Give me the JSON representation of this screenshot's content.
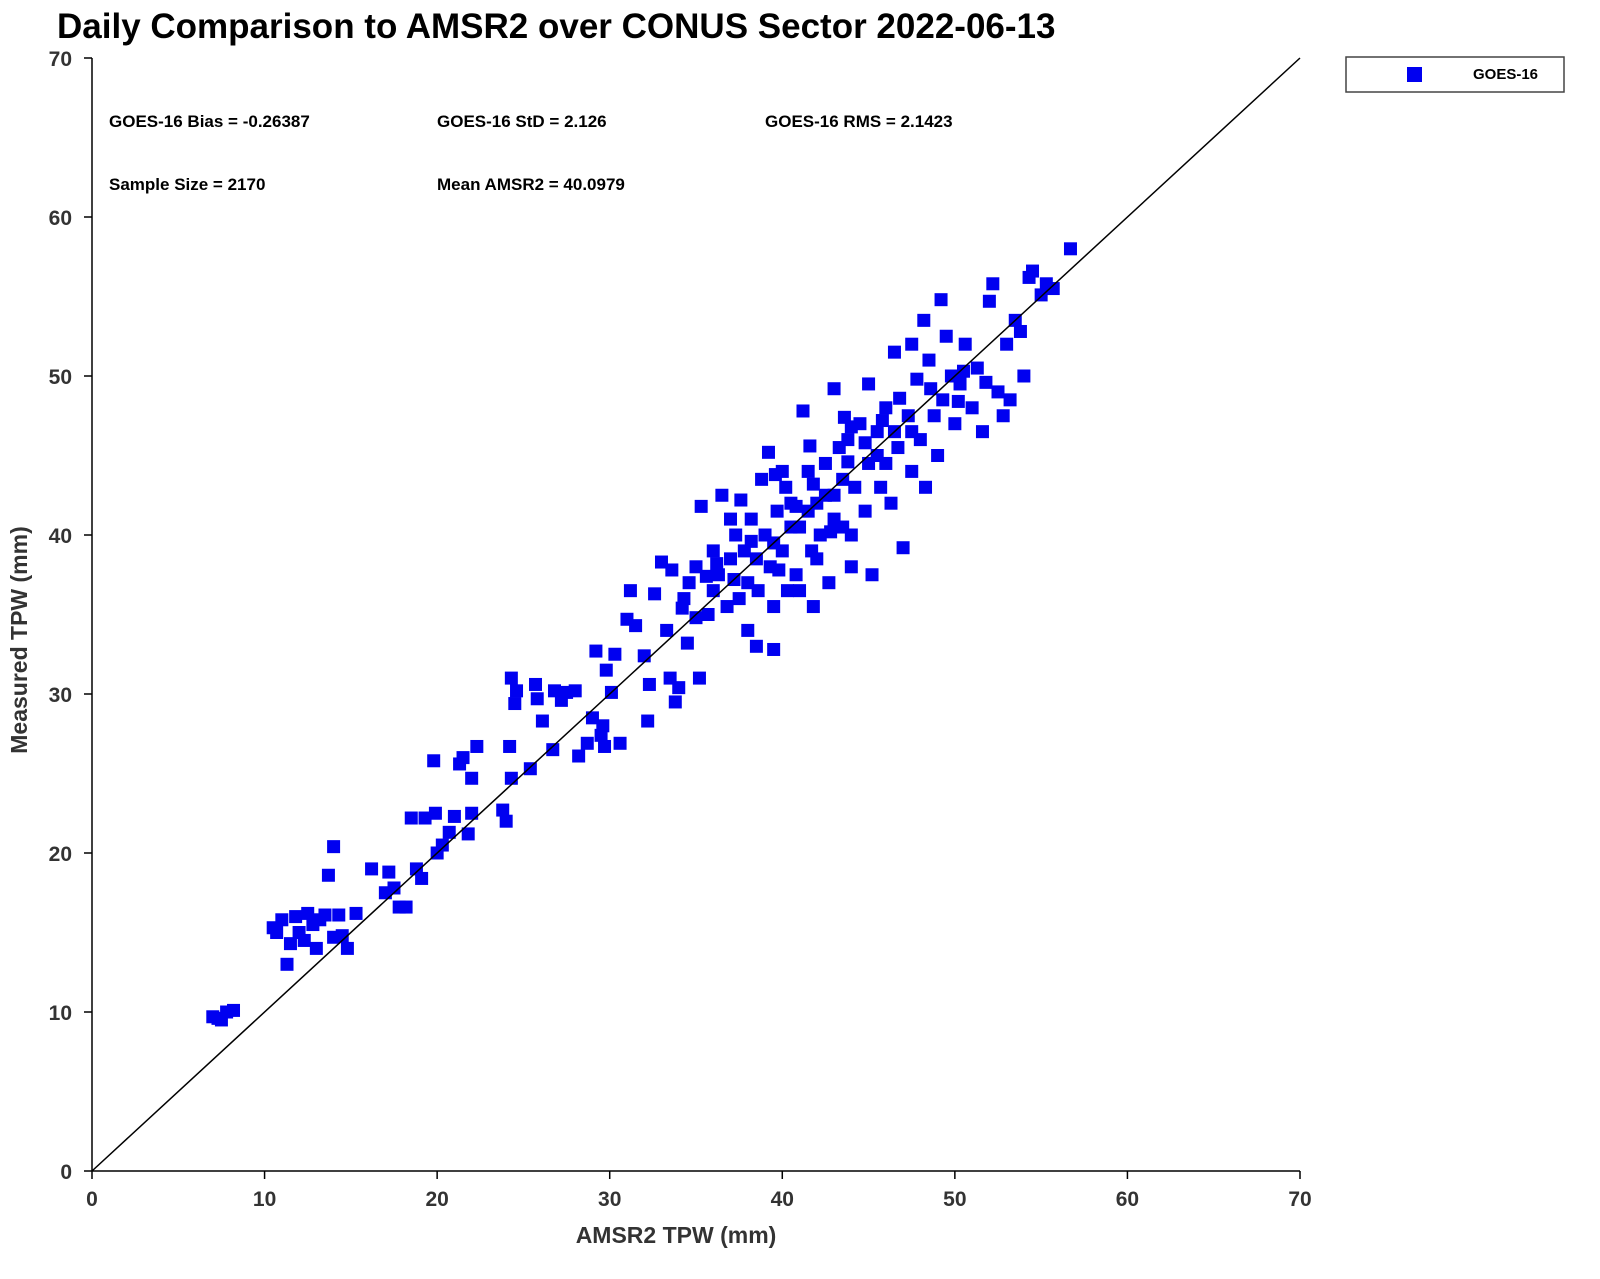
{
  "chart_data": {
    "type": "scatter",
    "title": "Daily Comparison to AMSR2 over CONUS Sector 2022-06-13",
    "xlabel": "AMSR2 TPW (mm)",
    "ylabel": "Measured TPW (mm)",
    "xlim": [
      0,
      70
    ],
    "ylim": [
      0,
      70
    ],
    "xticks": [
      0,
      10,
      20,
      30,
      40,
      50,
      60,
      70
    ],
    "yticks": [
      0,
      10,
      20,
      30,
      40,
      50,
      60,
      70
    ],
    "grid": false,
    "legend": {
      "placement": "top-right outside",
      "entries": [
        "GOES-16"
      ]
    },
    "reference_line": {
      "label": "1:1",
      "from": [
        0,
        0
      ],
      "to": [
        70,
        70
      ]
    },
    "annotations": {
      "bias": "GOES-16 Bias = -0.26387",
      "std": "GOES-16 StD = 2.126",
      "rms": "GOES-16 RMS = 2.1423",
      "sample_size": "Sample Size = 2170",
      "mean": "Mean AMSR2 = 40.0979"
    },
    "series": [
      {
        "name": "GOES-16",
        "color": "#0000f0",
        "marker": "square",
        "points": [
          [
            7,
            9.7
          ],
          [
            7.5,
            9.5
          ],
          [
            7.8,
            10
          ],
          [
            8.2,
            10.1
          ],
          [
            7.3,
            9.6
          ],
          [
            10.5,
            15.3
          ],
          [
            10.7,
            15
          ],
          [
            11,
            15.8
          ],
          [
            11.3,
            13
          ],
          [
            11.5,
            14.3
          ],
          [
            11.8,
            16
          ],
          [
            12,
            15
          ],
          [
            12.3,
            14.5
          ],
          [
            12.5,
            16.2
          ],
          [
            12.8,
            15.5
          ],
          [
            13,
            14
          ],
          [
            13.2,
            15.8
          ],
          [
            13.5,
            16.1
          ],
          [
            13.7,
            18.6
          ],
          [
            14,
            20.4
          ],
          [
            14,
            14.7
          ],
          [
            14.3,
            16.1
          ],
          [
            14.5,
            14.8
          ],
          [
            14.8,
            14
          ],
          [
            15.3,
            16.2
          ],
          [
            16.2,
            19
          ],
          [
            17,
            17.5
          ],
          [
            17.2,
            18.8
          ],
          [
            17.5,
            17.8
          ],
          [
            17.8,
            16.6
          ],
          [
            18.2,
            16.6
          ],
          [
            18.5,
            22.2
          ],
          [
            18.8,
            19
          ],
          [
            19.1,
            18.4
          ],
          [
            19.3,
            22.2
          ],
          [
            19.8,
            25.8
          ],
          [
            19.9,
            22.5
          ],
          [
            20,
            20
          ],
          [
            20.3,
            20.5
          ],
          [
            20.7,
            21.3
          ],
          [
            21,
            22.3
          ],
          [
            21.3,
            25.6
          ],
          [
            21.5,
            26
          ],
          [
            21.8,
            21.2
          ],
          [
            22,
            24.7
          ],
          [
            22,
            22.5
          ],
          [
            22.3,
            26.7
          ],
          [
            23.8,
            22.7
          ],
          [
            24,
            22
          ],
          [
            24.2,
            26.7
          ],
          [
            24.3,
            24.7
          ],
          [
            24.3,
            31
          ],
          [
            24.5,
            29.4
          ],
          [
            24.6,
            30.2
          ],
          [
            25.4,
            25.3
          ],
          [
            25.7,
            30.6
          ],
          [
            25.8,
            29.7
          ],
          [
            26.1,
            28.3
          ],
          [
            26.7,
            26.5
          ],
          [
            26.8,
            30.2
          ],
          [
            27.2,
            29.6
          ],
          [
            27.5,
            30.1
          ],
          [
            28,
            30.2
          ],
          [
            28.2,
            26.1
          ],
          [
            28.7,
            26.9
          ],
          [
            29,
            28.5
          ],
          [
            29.2,
            32.7
          ],
          [
            29.5,
            27.4
          ],
          [
            29.6,
            28
          ],
          [
            29.7,
            26.7
          ],
          [
            29.8,
            31.5
          ],
          [
            30.1,
            30.1
          ],
          [
            30.3,
            32.5
          ],
          [
            30.6,
            26.9
          ],
          [
            31,
            34.7
          ],
          [
            31.2,
            36.5
          ],
          [
            31.5,
            34.3
          ],
          [
            32,
            32.4
          ],
          [
            32.2,
            28.3
          ],
          [
            32.3,
            30.6
          ],
          [
            32.6,
            36.3
          ],
          [
            33,
            38.3
          ],
          [
            33.3,
            34
          ],
          [
            33.5,
            31
          ],
          [
            33.8,
            29.5
          ],
          [
            34,
            30.4
          ],
          [
            34.3,
            36
          ],
          [
            34.6,
            37
          ],
          [
            35,
            38
          ],
          [
            35.2,
            31
          ],
          [
            35.3,
            41.8
          ],
          [
            35.7,
            35
          ],
          [
            36,
            39
          ],
          [
            36.3,
            37.5
          ],
          [
            36.5,
            42.5
          ],
          [
            36.8,
            35.5
          ],
          [
            37,
            38.5
          ],
          [
            37.3,
            40
          ],
          [
            37.5,
            36
          ],
          [
            37.8,
            39
          ],
          [
            38,
            37
          ],
          [
            38.2,
            41
          ],
          [
            38.5,
            33
          ],
          [
            38.6,
            36.5
          ],
          [
            38.8,
            43.5
          ],
          [
            39,
            40
          ],
          [
            39.2,
            45.2
          ],
          [
            39.3,
            38
          ],
          [
            39.5,
            35.5
          ],
          [
            39.7,
            41.5
          ],
          [
            40,
            39
          ],
          [
            40.2,
            43
          ],
          [
            40.3,
            36.5
          ],
          [
            40.5,
            42
          ],
          [
            40.8,
            37.5
          ],
          [
            41,
            40.5
          ],
          [
            41.2,
            47.8
          ],
          [
            41.5,
            44
          ],
          [
            41.7,
            39
          ],
          [
            41.8,
            35.5
          ],
          [
            42,
            42
          ],
          [
            42.2,
            40
          ],
          [
            42.5,
            44.5
          ],
          [
            42.7,
            37
          ],
          [
            43,
            49.2
          ],
          [
            43,
            42.5
          ],
          [
            43.3,
            45.5
          ],
          [
            43.5,
            40.5
          ],
          [
            43.8,
            46
          ],
          [
            44,
            38
          ],
          [
            44.2,
            43
          ],
          [
            44.5,
            47
          ],
          [
            44.8,
            41.5
          ],
          [
            45,
            44.5
          ],
          [
            45.2,
            37.5
          ],
          [
            45.5,
            46.5
          ],
          [
            45.7,
            43
          ],
          [
            46,
            48
          ],
          [
            46.3,
            42
          ],
          [
            46.5,
            51.5
          ],
          [
            46.7,
            45.5
          ],
          [
            47,
            39.2
          ],
          [
            47.3,
            47.5
          ],
          [
            47.5,
            44
          ],
          [
            47.8,
            49.8
          ],
          [
            48,
            46
          ],
          [
            48.3,
            43
          ],
          [
            48.5,
            51
          ],
          [
            48.8,
            47.5
          ],
          [
            49,
            45
          ],
          [
            49.3,
            48.5
          ],
          [
            49.5,
            52.5
          ],
          [
            49.8,
            50
          ],
          [
            50,
            47
          ],
          [
            50.3,
            49.5
          ],
          [
            50.6,
            52
          ],
          [
            51,
            48
          ],
          [
            51.3,
            50.5
          ],
          [
            51.6,
            46.5
          ],
          [
            52,
            54.7
          ],
          [
            52.2,
            55.8
          ],
          [
            52.5,
            49
          ],
          [
            52.8,
            47.5
          ],
          [
            53,
            52
          ],
          [
            53.2,
            48.5
          ],
          [
            53.5,
            53.5
          ],
          [
            53.8,
            52.8
          ],
          [
            54,
            50
          ],
          [
            54.3,
            56.2
          ],
          [
            54.5,
            56.6
          ],
          [
            55,
            55.1
          ],
          [
            55.3,
            55.8
          ],
          [
            55.7,
            55.5
          ],
          [
            56.7,
            58
          ],
          [
            47.5,
            52
          ],
          [
            48.2,
            53.5
          ],
          [
            49.2,
            54.8
          ],
          [
            50.5,
            50.3
          ],
          [
            41,
            36.5
          ],
          [
            42,
            38.5
          ],
          [
            44,
            46.8
          ],
          [
            45,
            49.5
          ],
          [
            46,
            44.5
          ],
          [
            36,
            36.5
          ],
          [
            35,
            34.8
          ],
          [
            34.5,
            33.2
          ],
          [
            38,
            34
          ],
          [
            39.5,
            32.8
          ],
          [
            37,
            41
          ],
          [
            40,
            44
          ],
          [
            43,
            41
          ],
          [
            44,
            40
          ],
          [
            38.5,
            38.5
          ],
          [
            39.5,
            39.5
          ],
          [
            40.5,
            40.5
          ],
          [
            41.5,
            41.5
          ],
          [
            42.5,
            42.5
          ],
          [
            43.5,
            43.5
          ],
          [
            45.5,
            45
          ],
          [
            46.5,
            46.5
          ],
          [
            47.5,
            46.5
          ],
          [
            36.2,
            38.2
          ],
          [
            37.2,
            37.2
          ],
          [
            38.2,
            39.6
          ],
          [
            39.8,
            37.8
          ],
          [
            40.8,
            41.8
          ],
          [
            41.8,
            43.2
          ],
          [
            42.8,
            40.2
          ],
          [
            43.8,
            44.6
          ],
          [
            44.8,
            45.8
          ],
          [
            45.8,
            47.2
          ],
          [
            46.8,
            48.6
          ],
          [
            48.6,
            49.2
          ],
          [
            50.2,
            48.4
          ],
          [
            51.8,
            49.6
          ],
          [
            35.6,
            37.4
          ],
          [
            34.2,
            35.4
          ],
          [
            33.6,
            37.8
          ],
          [
            37.6,
            42.2
          ],
          [
            39.6,
            43.8
          ],
          [
            41.6,
            45.6
          ],
          [
            43.6,
            47.4
          ]
        ]
      }
    ]
  }
}
